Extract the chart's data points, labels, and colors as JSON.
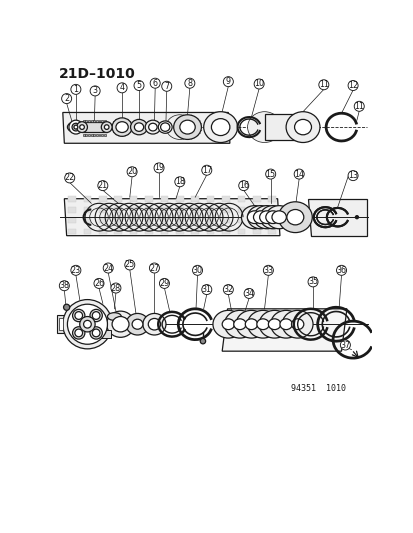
{
  "title": "21D–1010",
  "part_number": "94351  1010",
  "background": "#ffffff",
  "title_fontsize": 10,
  "fig_width": 4.14,
  "fig_height": 5.33,
  "dpi": 100,
  "line_color": "#1a1a1a",
  "label_r": 6.5
}
